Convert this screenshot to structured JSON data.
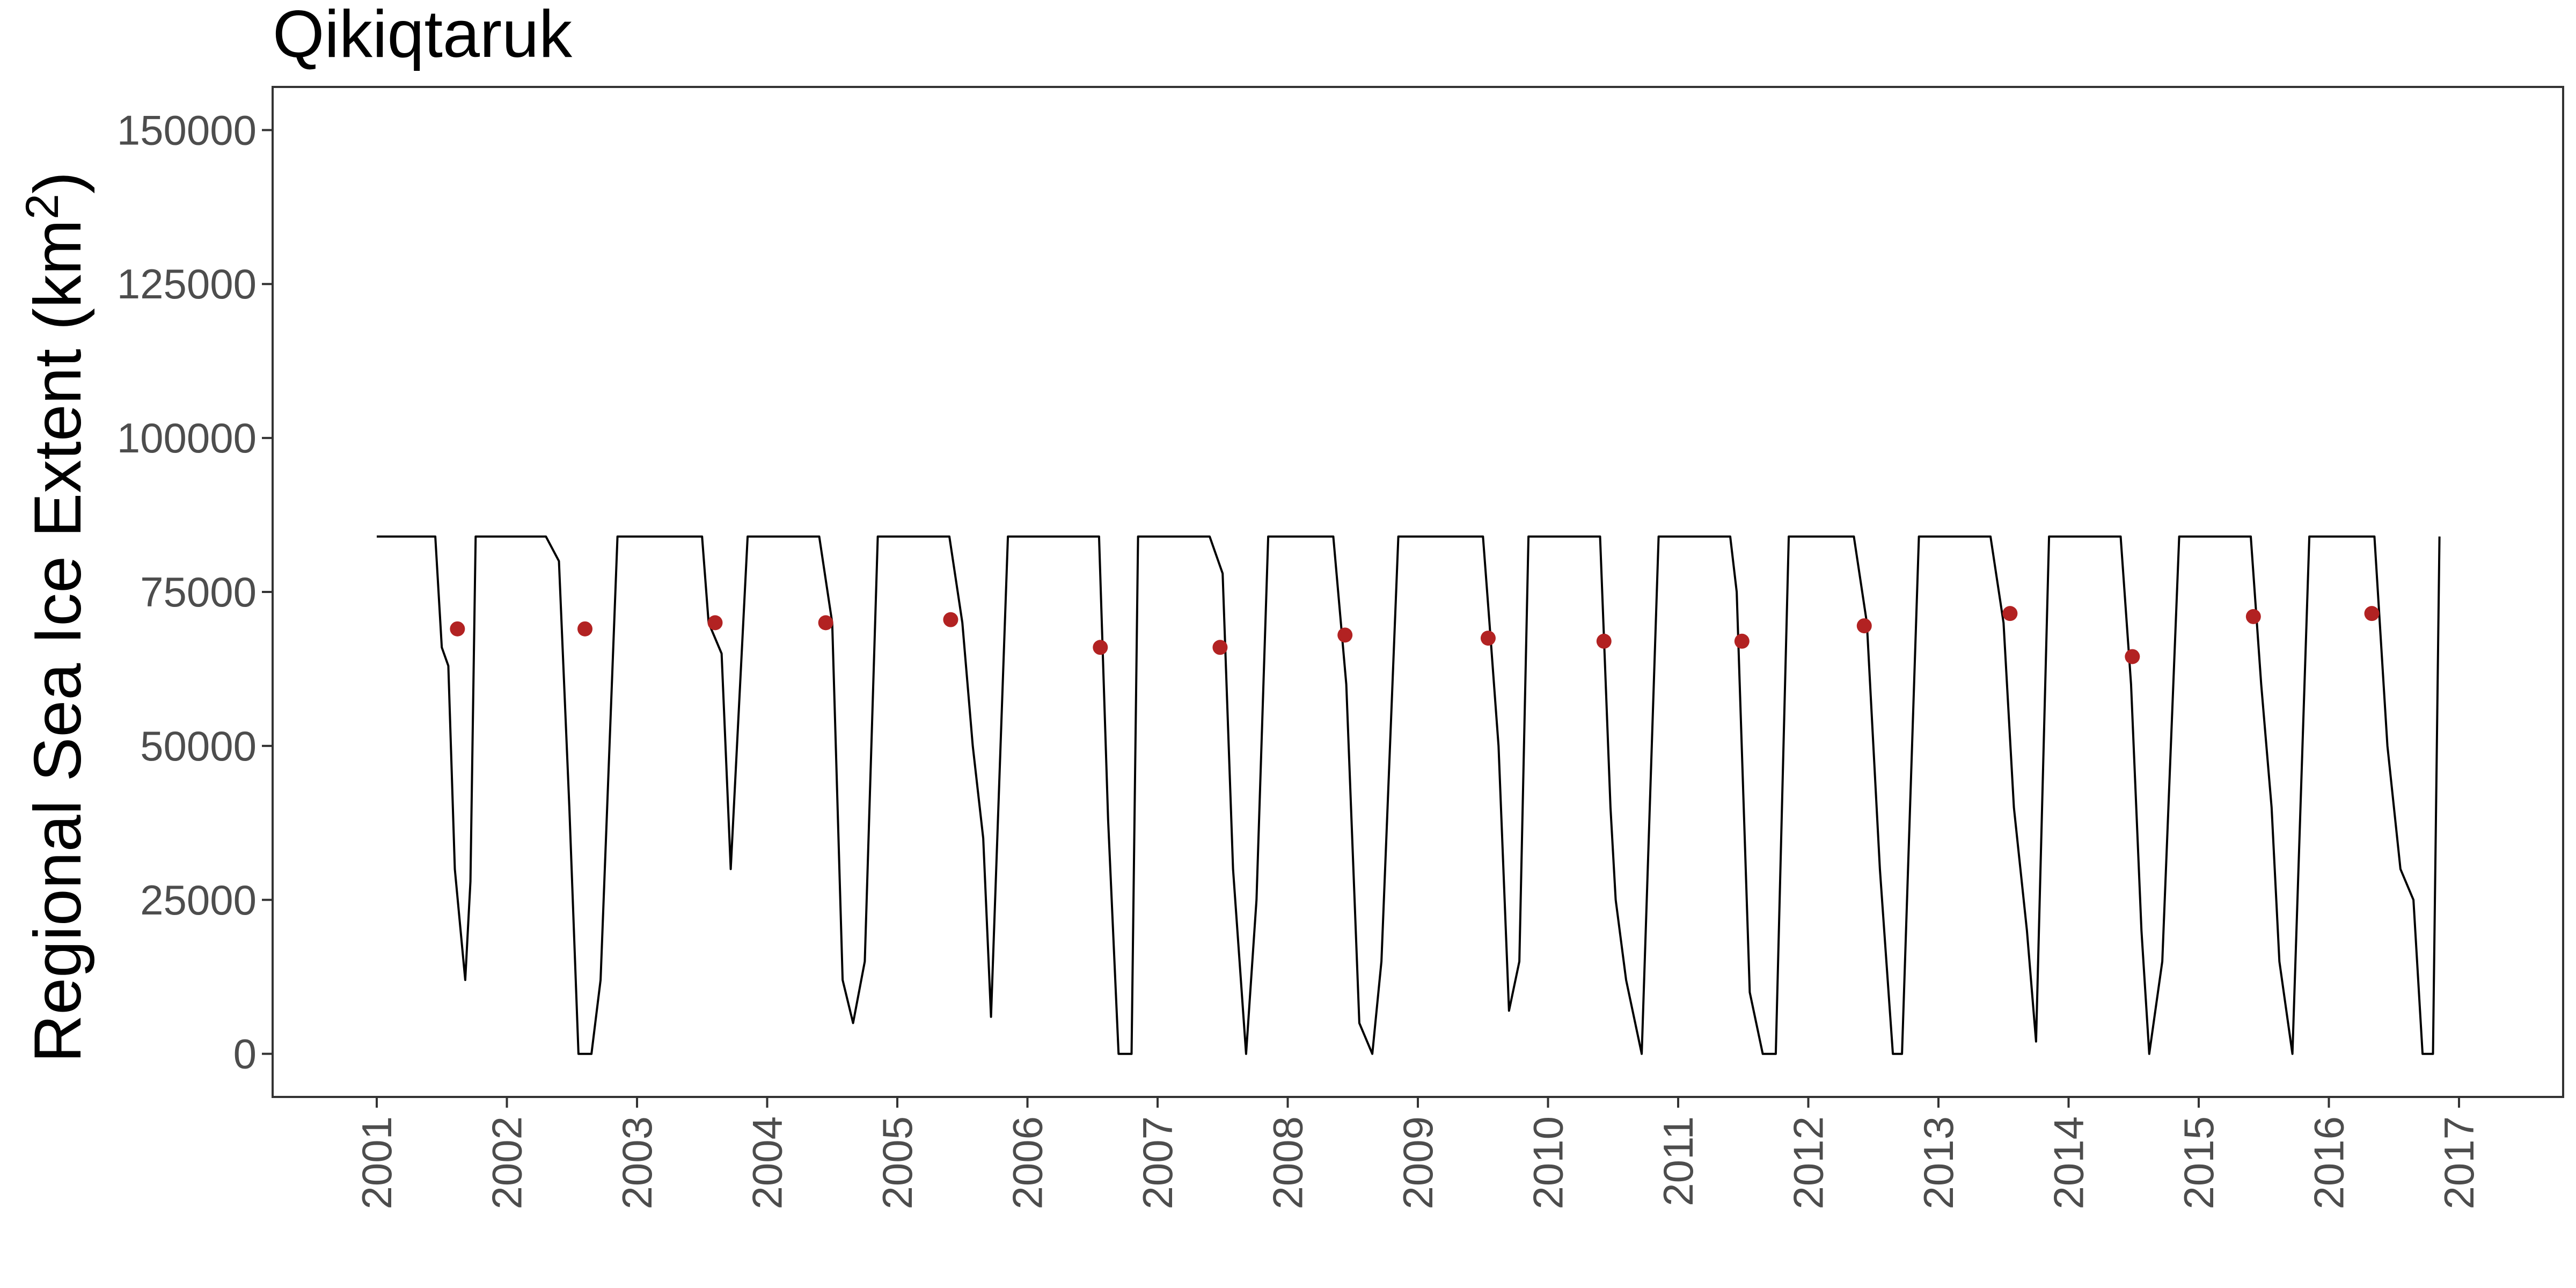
{
  "chart_data": {
    "type": "line",
    "title": "Qikiqtaruk",
    "xlabel": "",
    "ylabel": "Regional Sea Ice Extent (km",
    "ylabel_superscript": "2",
    "ylabel_suffix": ")",
    "ylim": [
      -7000,
      157000
    ],
    "xlim": [
      2000.2,
      2017.8
    ],
    "yticks": [
      0,
      25000,
      50000,
      75000,
      100000,
      125000,
      150000
    ],
    "ytick_labels": [
      "0",
      "25000",
      "50000",
      "75000",
      "100000",
      "125000",
      "150000"
    ],
    "xticks": [
      2001,
      2002,
      2003,
      2004,
      2005,
      2006,
      2007,
      2008,
      2009,
      2010,
      2011,
      2012,
      2013,
      2014,
      2015,
      2016,
      2017
    ],
    "xtick_labels": [
      "2001",
      "2002",
      "2003",
      "2004",
      "2005",
      "2006",
      "2007",
      "2008",
      "2009",
      "2010",
      "2011",
      "2012",
      "2013",
      "2014",
      "2015",
      "2016",
      "2017"
    ],
    "grid": false,
    "legend": "none",
    "series": [
      {
        "color": "#000000",
        "x": [
          2001.0,
          2001.45,
          2001.5,
          2001.55,
          2001.6,
          2001.68,
          2001.72,
          2001.76,
          2001.8,
          2001.85,
          2002.3,
          2002.4,
          2002.48,
          2002.55,
          2002.65,
          2002.72,
          2002.85,
          2003.5,
          2003.55,
          2003.65,
          2003.72,
          2003.85,
          2004.4,
          2004.5,
          2004.58,
          2004.66,
          2004.75,
          2004.85,
          2005.4,
          2005.5,
          2005.58,
          2005.66,
          2005.72,
          2005.85,
          2006.55,
          2006.62,
          2006.7,
          2006.8,
          2006.85,
          2007.4,
          2007.5,
          2007.58,
          2007.68,
          2007.76,
          2007.85,
          2008.35,
          2008.45,
          2008.55,
          2008.65,
          2008.72,
          2008.85,
          2009.5,
          2009.55,
          2009.62,
          2009.7,
          2009.78,
          2009.85,
          2010.4,
          2010.48,
          2010.52,
          2010.6,
          2010.72,
          2010.85,
          2011.4,
          2011.45,
          2011.55,
          2011.65,
          2011.75,
          2011.85,
          2012.35,
          2012.45,
          2012.55,
          2012.65,
          2012.72,
          2012.85,
          2013.4,
          2013.5,
          2013.58,
          2013.68,
          2013.75,
          2013.85,
          2014.4,
          2014.48,
          2014.56,
          2014.62,
          2014.72,
          2014.85,
          2015.4,
          2015.48,
          2015.56,
          2015.62,
          2015.72,
          2015.85,
          2016.35,
          2016.45,
          2016.55,
          2016.65,
          2016.72,
          2016.8,
          2016.85
        ],
        "y": [
          84000,
          84000,
          66000,
          63000,
          30000,
          12000,
          28000,
          84000,
          84000,
          84000,
          84000,
          80000,
          40000,
          0,
          0,
          12000,
          84000,
          84000,
          70000,
          65000,
          30000,
          84000,
          84000,
          70000,
          12000,
          5000,
          15000,
          84000,
          84000,
          70000,
          50000,
          35000,
          6000,
          84000,
          84000,
          38000,
          0,
          0,
          84000,
          84000,
          78000,
          30000,
          0,
          25000,
          84000,
          84000,
          60000,
          5000,
          0,
          15000,
          84000,
          84000,
          70000,
          50000,
          7000,
          15000,
          84000,
          84000,
          40000,
          25000,
          12000,
          0,
          84000,
          84000,
          75000,
          10000,
          0,
          0,
          84000,
          84000,
          70000,
          30000,
          0,
          0,
          84000,
          84000,
          70000,
          40000,
          20000,
          2000,
          84000,
          84000,
          60000,
          20000,
          0,
          15000,
          84000,
          84000,
          60000,
          40000,
          15000,
          0,
          84000,
          84000,
          50000,
          30000,
          25000,
          0,
          0,
          84000
        ]
      }
    ],
    "points": {
      "color": "#b22222",
      "x": [
        2001.62,
        2002.6,
        2003.6,
        2004.45,
        2005.41,
        2006.56,
        2007.48,
        2008.44,
        2009.54,
        2010.43,
        2011.49,
        2012.43,
        2013.55,
        2014.49,
        2015.42,
        2016.33
      ],
      "y": [
        69000,
        69000,
        70000,
        70000,
        70500,
        66000,
        66000,
        68000,
        67500,
        67000,
        67000,
        69500,
        71500,
        64500,
        71000,
        71500
      ]
    }
  }
}
